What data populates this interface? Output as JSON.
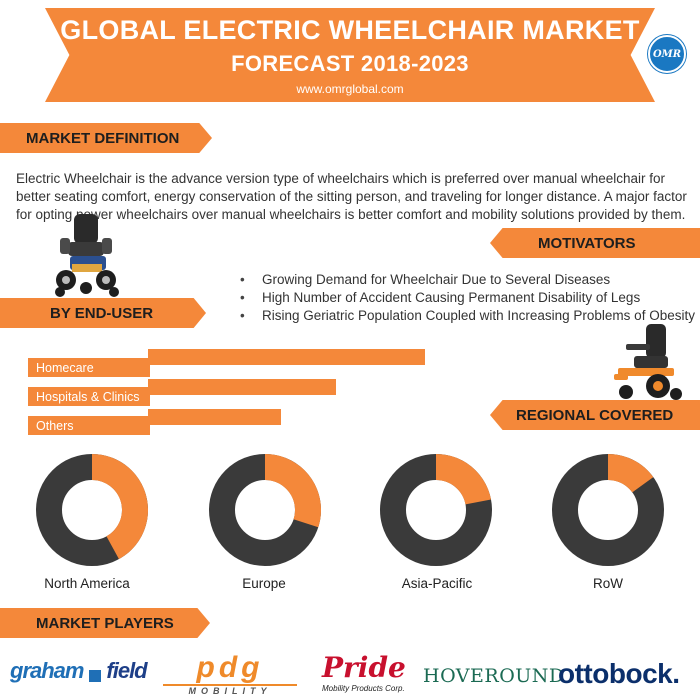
{
  "header": {
    "title_line1": "GLOBAL ELECTRIC WHEELCHAIR MARKET",
    "title_line2": "FORECAST 2018-2023",
    "website": "www.omrglobal.com",
    "logo_text": "OMR"
  },
  "colors": {
    "accent": "#f4883a",
    "dark": "#3a3a3a",
    "brand_blue": "#1a78c2"
  },
  "sections": {
    "market_definition": "MARKET DEFINITION",
    "motivators": "MOTIVATORS",
    "by_end_user": "BY END-USER",
    "regional_covered": "REGIONAL COVERED",
    "market_players": "MARKET PLAYERS"
  },
  "definition_text": "Electric Wheelchair is the advance version type of wheelchairs which is preferred over manual wheelchair for better seating comfort, energy conservation of the sitting person, and traveling for longer distance. A major factor for opting power wheelchairs over manual wheelchairs is better comfort and mobility solutions provided by them.",
  "motivators_list": [
    "Growing Demand for Wheelchair Due to Several Diseases",
    "High Number of Accident Causing Permanent Disability of Legs",
    "Rising Geriatric Population Coupled with Increasing Problems of Obesity"
  ],
  "end_user": {
    "items": [
      {
        "label": "Homecare",
        "share": 1.0
      },
      {
        "label": "Hospitals & Clinics",
        "share": 0.68
      },
      {
        "label": "Others",
        "share": 0.48
      }
    ]
  },
  "regions": [
    {
      "label": "North America",
      "share": 0.42
    },
    {
      "label": "Europe",
      "share": 0.3
    },
    {
      "label": "Asia-Pacific",
      "share": 0.22
    },
    {
      "label": "RoW",
      "share": 0.15
    }
  ],
  "players": {
    "graham_field_1": "graham",
    "graham_field_2": "field",
    "pdg_1": "pdg",
    "pdg_2": "MOBILITY",
    "pride_1": "Pride",
    "pride_2": "Mobility Products Corp.",
    "hoveround": "HOVEROUND",
    "ottobock": "ottobock."
  },
  "icons": [
    "omr-logo",
    "wheelchair-icon",
    "donut-chart"
  ]
}
